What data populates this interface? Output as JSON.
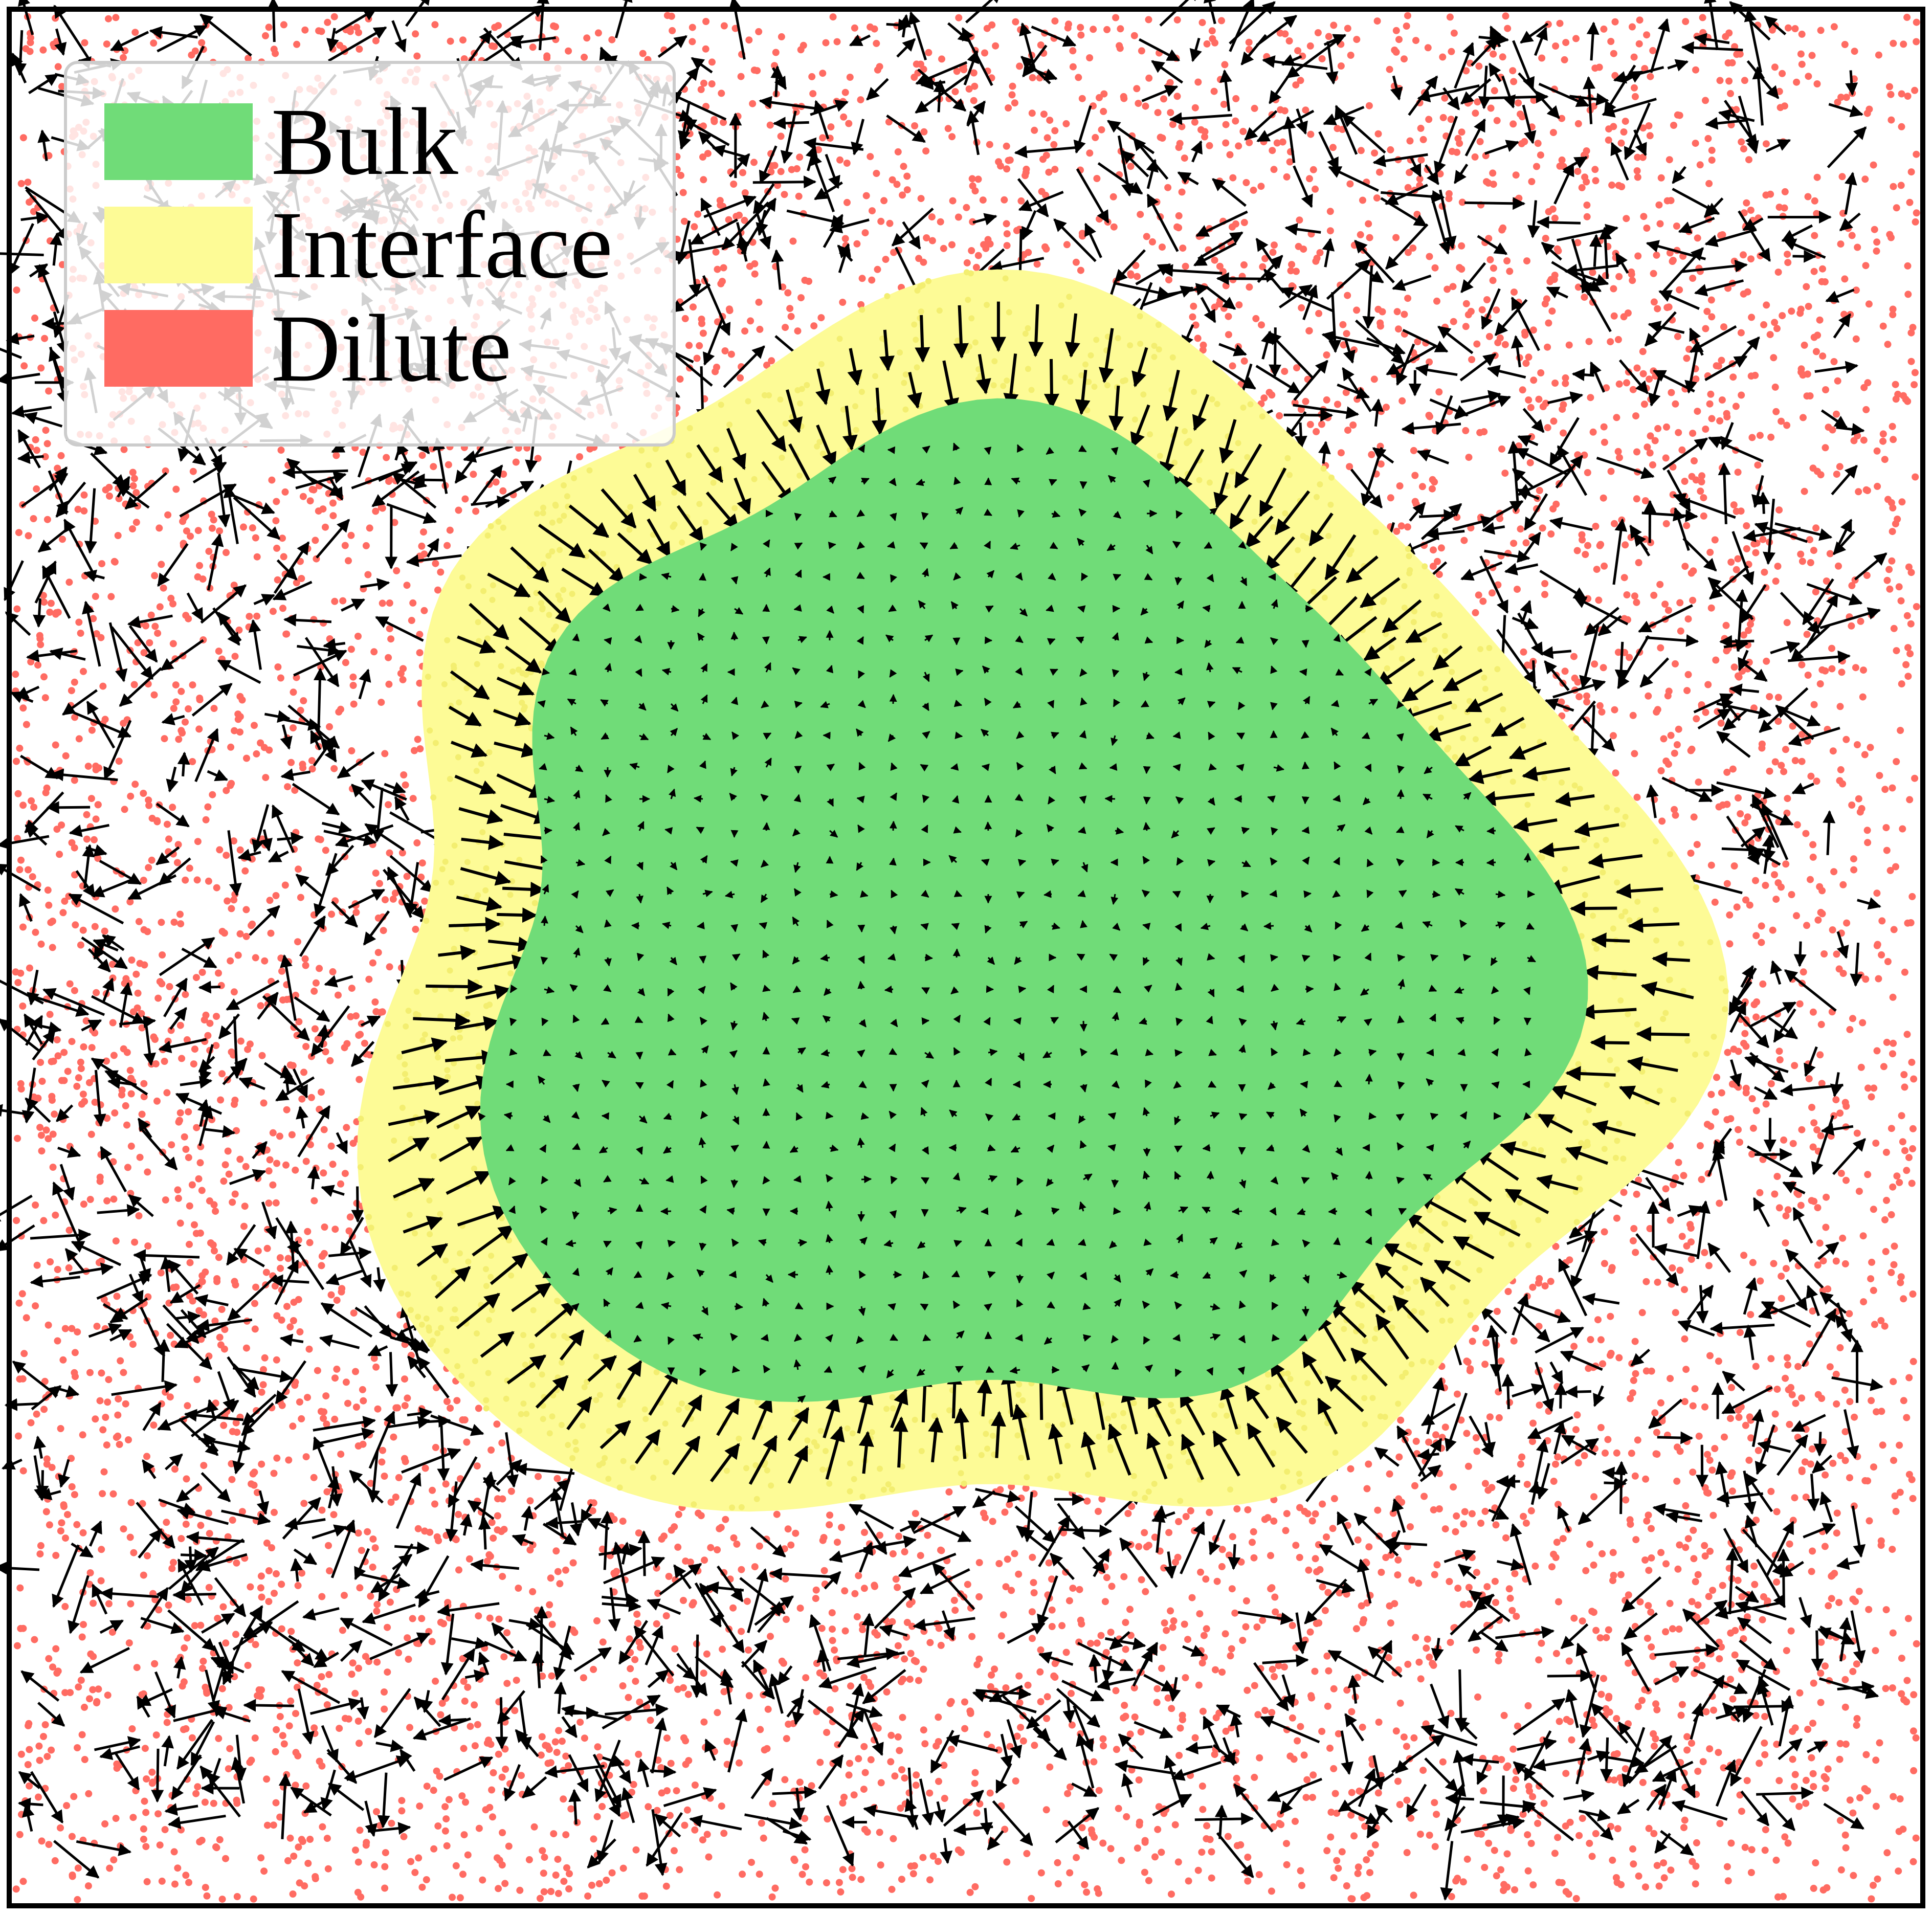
{
  "legend": {
    "items": [
      {
        "label": "Bulk",
        "color": "#70DC78"
      },
      {
        "label": "Interface",
        "color": "#FDFB96"
      },
      {
        "label": "Dilute",
        "color": "#FF6B62"
      }
    ]
  },
  "colors": {
    "background": "#FFFFFF",
    "frame": "#000000",
    "arrow": "#000000",
    "legend_background": "#FFFFFF"
  },
  "icons": {
    "particle": "dot",
    "velocity": "arrow"
  }
}
